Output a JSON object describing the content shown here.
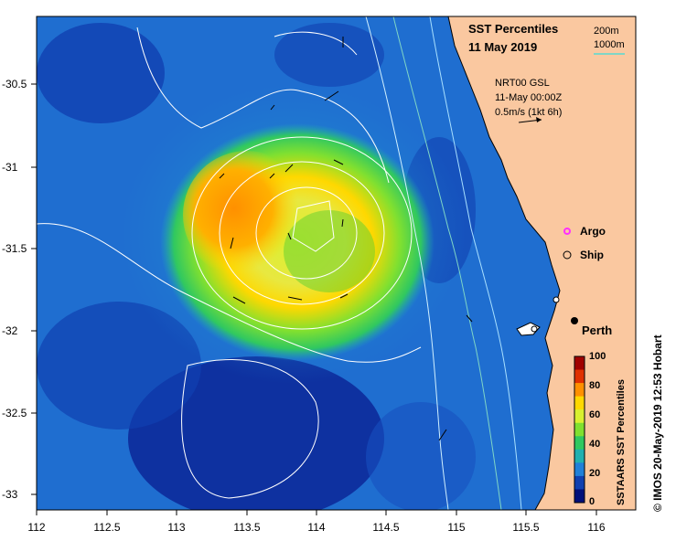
{
  "title": {
    "line1": "SST Percentiles",
    "line2": "11 May 2019"
  },
  "depth_legend": {
    "line1": "200m",
    "line2": "1000m",
    "line_color": "#7fd6c6"
  },
  "model_info": {
    "line1": "NRT00 GSL",
    "line2": "11-May 00:00Z",
    "line3": "0.5m/s (1kt 6h)"
  },
  "legend": {
    "argo": "Argo",
    "ship": "Ship"
  },
  "place": {
    "perth": "Perth"
  },
  "colorbar": {
    "title": "SSTAARS SST Percentiles",
    "ticks": [
      "100",
      "80",
      "60",
      "40",
      "20",
      "0"
    ],
    "colors": [
      "#a00000",
      "#e03000",
      "#ff9000",
      "#ffd800",
      "#d8f030",
      "#80e030",
      "#30c860",
      "#20b0b0",
      "#2080d8",
      "#1040b0",
      "#00107a"
    ]
  },
  "axes": {
    "x_ticks": [
      "112",
      "112.5",
      "113",
      "113.5",
      "114",
      "114.5",
      "115",
      "115.5",
      "116"
    ],
    "y_ticks": [
      "-30.5",
      "-31",
      "-31.5",
      "-32",
      "-32.5",
      "-33"
    ]
  },
  "credit": "© IMOS 20-May-2019 12:53 Hobart",
  "colors": {
    "land": "#fac8a0",
    "ocean_deep": "#00107a"
  }
}
